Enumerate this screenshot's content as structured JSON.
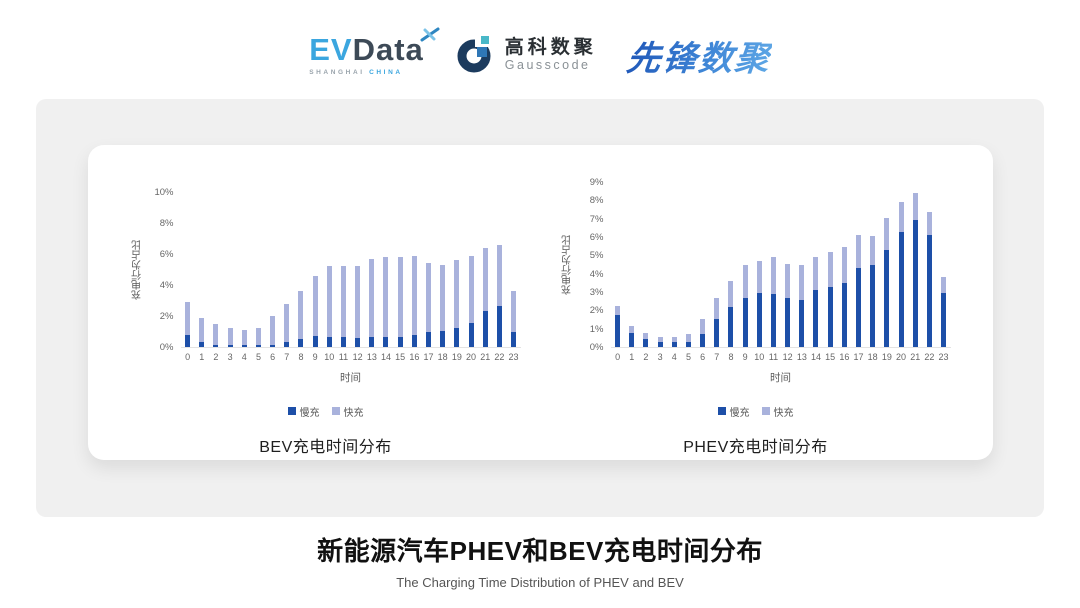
{
  "header": {
    "evdata": {
      "ev": "EV",
      "data": "Data",
      "sub_left": "SHANGHAI",
      "sub_right": "CHINA"
    },
    "gausscode": {
      "cn": "高科数聚",
      "en": "Gausscode"
    },
    "xianfeng": {
      "text": "先锋数聚"
    }
  },
  "colors": {
    "slow": "#1D4FA8",
    "fast": "#A9B2DC",
    "panel_bg": "#F0F0F0",
    "card_bg": "#FFFFFF",
    "axis_text": "#595959",
    "evdata_blue": "#3BA6DF",
    "evdata_dark": "#3D4A57",
    "gauss_navy": "#1C3B5E",
    "gauss_blue": "#2F77B6",
    "gauss_teal": "#49B8C8",
    "xianfeng_blue": "#2E6BC4"
  },
  "chart_data": [
    {
      "type": "bar",
      "stacked": true,
      "title": "BEV充电时间分布",
      "xlabel": "时间",
      "ylabel": "充电行为占比",
      "ylim": [
        0,
        10
      ],
      "yticks": [
        "0%",
        "2%",
        "4%",
        "6%",
        "8%",
        "10%"
      ],
      "grid": false,
      "legend_position": "bottom",
      "categories": [
        0,
        1,
        2,
        3,
        4,
        5,
        6,
        7,
        8,
        9,
        10,
        11,
        12,
        13,
        14,
        15,
        16,
        17,
        18,
        19,
        20,
        21,
        22,
        23
      ],
      "series": [
        {
          "name": "慢充",
          "color": "#1D4FA8",
          "values": [
            0.8,
            0.35,
            0.15,
            0.1,
            0.1,
            0.1,
            0.15,
            0.35,
            0.5,
            0.7,
            0.65,
            0.65,
            0.55,
            0.65,
            0.65,
            0.65,
            0.8,
            0.95,
            1.05,
            1.2,
            1.55,
            2.35,
            2.65,
            0.95
          ]
        },
        {
          "name": "快充",
          "color": "#A9B2DC",
          "values": [
            2.1,
            1.55,
            1.35,
            1.1,
            1.0,
            1.1,
            1.85,
            2.45,
            3.1,
            3.9,
            4.55,
            4.55,
            4.65,
            5.0,
            5.15,
            5.15,
            5.05,
            4.5,
            4.25,
            4.4,
            4.35,
            4.05,
            3.95,
            2.65
          ]
        }
      ]
    },
    {
      "type": "bar",
      "stacked": true,
      "title": "PHEV充电时间分布",
      "xlabel": "时间",
      "ylabel": "充电行为占比",
      "ylim": [
        0,
        9
      ],
      "yticks": [
        "0%",
        "1%",
        "2%",
        "3%",
        "4%",
        "5%",
        "6%",
        "7%",
        "8%",
        "9%"
      ],
      "grid": false,
      "legend_position": "bottom",
      "categories": [
        0,
        1,
        2,
        3,
        4,
        5,
        6,
        7,
        8,
        9,
        10,
        11,
        12,
        13,
        14,
        15,
        16,
        17,
        18,
        19,
        20,
        21,
        22,
        23
      ],
      "series": [
        {
          "name": "慢充",
          "color": "#1D4FA8",
          "values": [
            1.75,
            0.75,
            0.45,
            0.25,
            0.25,
            0.3,
            0.7,
            1.55,
            2.2,
            2.7,
            2.95,
            2.9,
            2.7,
            2.55,
            3.1,
            3.25,
            3.5,
            4.3,
            4.45,
            5.3,
            6.25,
            6.95,
            6.1,
            2.95
          ]
        },
        {
          "name": "快充",
          "color": "#A9B2DC",
          "values": [
            0.5,
            0.4,
            0.3,
            0.3,
            0.3,
            0.4,
            0.85,
            1.1,
            1.4,
            1.75,
            1.75,
            2.0,
            1.85,
            1.9,
            1.8,
            1.95,
            1.95,
            1.8,
            1.6,
            1.75,
            1.65,
            1.45,
            1.25,
            0.85
          ]
        }
      ]
    }
  ],
  "footer": {
    "title": "新能源汽车PHEV和BEV充电时间分布",
    "subtitle": "The Charging Time Distribution of PHEV and BEV"
  }
}
